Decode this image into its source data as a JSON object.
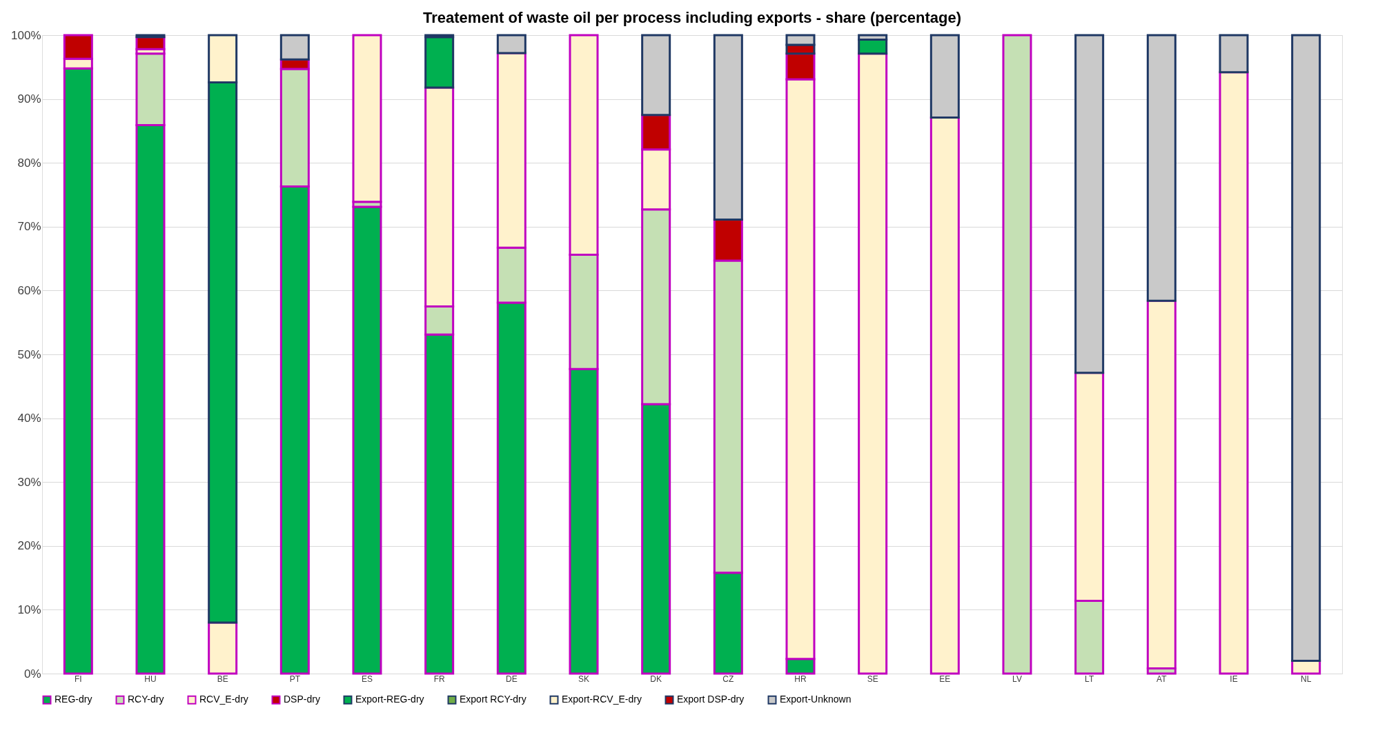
{
  "chart_data": {
    "type": "bar",
    "stacked": true,
    "title": "Treatement of waste oil per process including exports - share (percentage)",
    "categories": [
      "FI",
      "HU",
      "BE",
      "PT",
      "ES",
      "FR",
      "DE",
      "SK",
      "DK",
      "CZ",
      "HR",
      "SE",
      "EE",
      "LV",
      "LT",
      "AT",
      "IE",
      "NL"
    ],
    "series": [
      {
        "name": "REG-dry",
        "color": "#00b050",
        "values": [
          94.8,
          85.9,
          null,
          76.3,
          73.1,
          53.1,
          58.1,
          47.7,
          42.2,
          15.8,
          2.3,
          null,
          null,
          null,
          null,
          null,
          null,
          null
        ]
      },
      {
        "name": "RCY-dry",
        "color": "#c5e0b4",
        "values": [
          null,
          11.2,
          null,
          18.4,
          0.8,
          4.4,
          8.6,
          17.9,
          30.5,
          48.9,
          null,
          null,
          null,
          100,
          11.4,
          0.8,
          null,
          null
        ]
      },
      {
        "name": "RCV_E-dry",
        "color": "#fff2cc",
        "values": [
          1.5,
          0.7,
          8.0,
          null,
          26.1,
          34.3,
          30.5,
          34.4,
          9.4,
          null,
          90.8,
          97.1,
          87.1,
          null,
          35.7,
          57.6,
          94.2,
          2.0
        ]
      },
      {
        "name": "DSP-dry",
        "color": "#c00000",
        "values": [
          3.7,
          1.9,
          null,
          1.5,
          null,
          null,
          null,
          null,
          5.4,
          6.4,
          4.0,
          null,
          null,
          null,
          null,
          null,
          null,
          null
        ]
      },
      {
        "name": "Export-REG-dry",
        "color": "#00b050",
        "values": [
          null,
          null,
          84.6,
          null,
          null,
          7.9,
          null,
          null,
          null,
          null,
          null,
          2.2,
          null,
          null,
          null,
          null,
          null,
          null
        ]
      },
      {
        "name": "Export RCY-dry",
        "color": "#70ad47",
        "values": [
          null,
          null,
          null,
          null,
          null,
          null,
          null,
          null,
          null,
          null,
          null,
          null,
          null,
          null,
          null,
          null,
          null,
          null
        ]
      },
      {
        "name": "Export-RCV_E-dry",
        "color": "#fff2cc",
        "values": [
          null,
          null,
          7.4,
          null,
          null,
          null,
          null,
          null,
          null,
          null,
          null,
          null,
          null,
          null,
          null,
          null,
          null,
          null
        ]
      },
      {
        "name": "Export DSP-dry",
        "color": "#c00000",
        "values": [
          null,
          null,
          null,
          null,
          null,
          null,
          null,
          null,
          null,
          null,
          1.4,
          null,
          null,
          null,
          null,
          null,
          null,
          null
        ]
      },
      {
        "name": "Export-Unknown",
        "color": "#c9c9c9",
        "values": [
          null,
          0.3,
          null,
          3.8,
          null,
          0.3,
          2.8,
          null,
          12.5,
          28.9,
          1.5,
          0.7,
          12.9,
          null,
          52.9,
          41.6,
          5.8,
          98.0
        ]
      }
    ],
    "ylim": [
      0,
      100
    ],
    "yticks": [
      {
        "value": 0,
        "label": "0%"
      },
      {
        "value": 10,
        "label": "10%"
      },
      {
        "value": 20,
        "label": "20%"
      },
      {
        "value": 30,
        "label": "30%"
      },
      {
        "value": 40,
        "label": "40%"
      },
      {
        "value": 50,
        "label": "50%"
      },
      {
        "value": 60,
        "label": "60%"
      },
      {
        "value": 70,
        "label": "70%"
      },
      {
        "value": 80,
        "label": "80%"
      },
      {
        "value": 90,
        "label": "90%"
      },
      {
        "value": 100,
        "label": "100%"
      }
    ],
    "grid": "y",
    "legend": "bottom"
  }
}
